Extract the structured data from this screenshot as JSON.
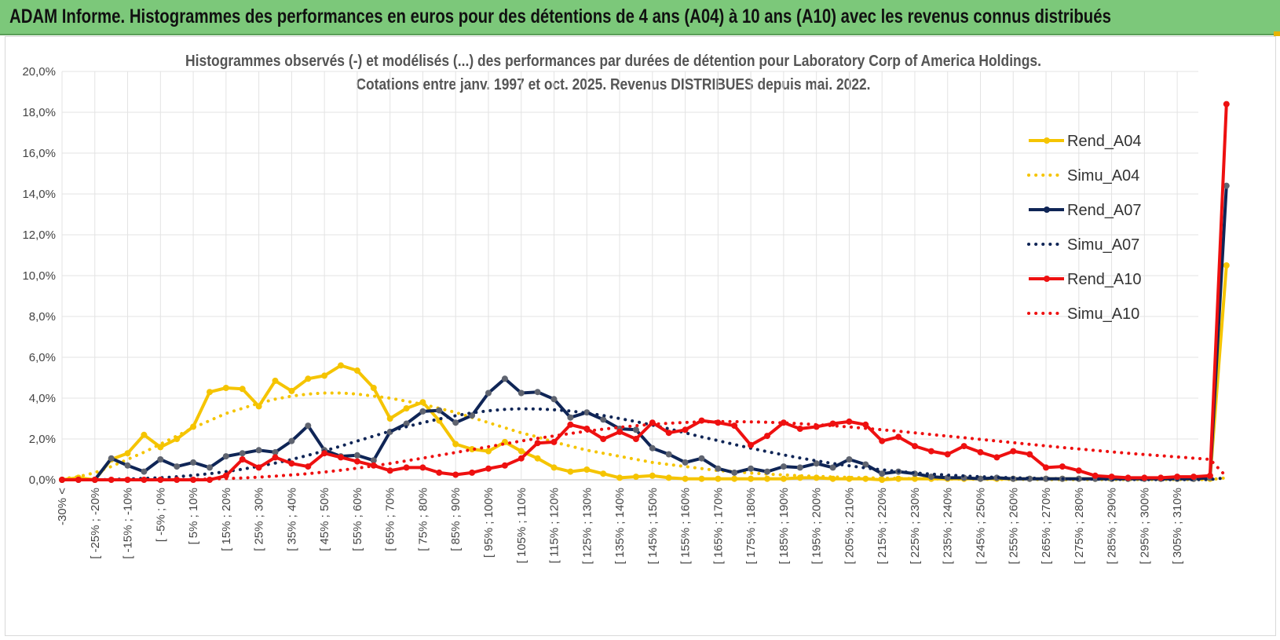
{
  "banner_title": "ADAM Informe. Histogrammes des performances en euros pour des détentions de 4 ans (A04) à 10 ans (A10) avec les revenus connus distribués",
  "chart_data": {
    "type": "line",
    "title": "Histogrammes observés (-) et modélisés (...) des performances par durées de détention pour Laboratory Corp of America  Holdings.",
    "subtitle": "Cotations entre janv. 1997 et oct. 2025.  Revenus DISTRIBUES depuis mai. 2022.",
    "ylim": [
      0,
      20
    ],
    "yticks": [
      "0,0%",
      "2,0%",
      "4,0%",
      "6,0%",
      "8,0%",
      "10,0%",
      "12,0%",
      "14,0%",
      "16,0%",
      "18,0%",
      "20,0%"
    ],
    "grid": "vertical-and-horizontal",
    "legend_position": "right",
    "x_labels": [
      "-30% <",
      "",
      "[ -25% ; -20%",
      "",
      "[ -15% ; -10%",
      "",
      "[ -5% ; 0%",
      "",
      "[ 5% ; 10%",
      "",
      "[ 15% ; 20%",
      "",
      "[ 25% ; 30%",
      "",
      "[ 35% ; 40%",
      "",
      "[ 45% ; 50%",
      "",
      "[ 55% ; 60%",
      "",
      "[ 65% ; 70%",
      "",
      "[ 75% ; 80%",
      "",
      "[ 85% ; 90%",
      "",
      "[ 95% ; 100%",
      "",
      "[ 105% ; 110%",
      "",
      "[ 115% ; 120%",
      "",
      "[ 125% ; 130%",
      "",
      "[ 135% ; 140%",
      "",
      "[ 145% ; 150%",
      "",
      "[ 155% ; 160%",
      "",
      "[ 165% ; 170%",
      "",
      "[ 175% ; 180%",
      "",
      "[ 185% ; 190%",
      "",
      "[ 195% ; 200%",
      "",
      "[ 205% ; 210%",
      "",
      "[ 215% ; 220%",
      "",
      "[ 225% ; 230%",
      "",
      "[ 235% ; 240%",
      "",
      "[ 245% ; 250%",
      "",
      "[ 255% ; 260%",
      "",
      "[ 265% ; 270%",
      "",
      "[ 275% ; 280%",
      "",
      "[ 285% ; 290%",
      "",
      "[ 295% ; 300%",
      "",
      "[ 305% ; 310%",
      ""
    ],
    "series": [
      {
        "name": "Rend_A04",
        "style": "solid",
        "color": "#f5c400",
        "values": [
          0,
          0.1,
          0,
          1,
          1.3,
          2.2,
          1.6,
          2,
          2.6,
          4.3,
          4.5,
          4.45,
          3.6,
          4.85,
          4.35,
          4.95,
          5.1,
          5.6,
          5.35,
          4.5,
          3,
          3.5,
          3.8,
          2.9,
          1.75,
          1.5,
          1.4,
          1.85,
          1.4,
          1.05,
          0.6,
          0.4,
          0.5,
          0.3,
          0.1,
          0.15,
          0.2,
          0.1,
          0.05,
          0.05,
          0.05,
          0.05,
          0.05,
          0.05,
          0.05,
          0.1,
          0.1,
          0.05,
          0.05,
          0.05,
          0,
          0.05,
          0.05,
          0.05,
          0.05,
          0.05,
          0.05,
          0.05,
          0.05,
          0.05,
          0.05,
          0.05,
          0.05,
          0.05,
          0.05,
          0.05,
          0.05,
          0.05,
          0.05,
          0.05,
          0.05,
          10.5
        ]
      },
      {
        "name": "Simu_A04",
        "style": "dotted",
        "color": "#f5c400",
        "values": [
          0.05,
          0.15,
          0.35,
          0.65,
          1,
          1.35,
          1.75,
          2.15,
          2.55,
          2.9,
          3.25,
          3.5,
          3.75,
          3.95,
          4.1,
          4.2,
          4.25,
          4.25,
          4.2,
          4.1,
          4,
          3.85,
          3.7,
          3.5,
          3.3,
          3.05,
          2.8,
          2.55,
          2.3,
          2.1,
          1.85,
          1.65,
          1.45,
          1.3,
          1.15,
          1,
          0.85,
          0.75,
          0.65,
          0.55,
          0.45,
          0.4,
          0.33,
          0.28,
          0.24,
          0.2,
          0.17,
          0.14,
          0.12,
          0.1,
          0.08,
          0.07,
          0.06,
          0.05,
          0.04,
          0.03,
          0.03,
          0.02,
          0.02,
          0.02,
          0.01,
          0.01,
          0.01,
          0.01,
          0.01,
          0.01,
          0.01,
          0.01,
          0.01,
          0.01,
          0.01,
          0.1
        ]
      },
      {
        "name": "Rend_A07",
        "style": "solid",
        "color": "#0f2556",
        "values": [
          0,
          0,
          0,
          1.05,
          0.7,
          0.4,
          1,
          0.65,
          0.85,
          0.6,
          1.15,
          1.3,
          1.45,
          1.35,
          1.9,
          2.65,
          1.45,
          1.15,
          1.2,
          0.95,
          2.35,
          2.75,
          3.35,
          3.4,
          2.8,
          3.15,
          4.25,
          4.95,
          4.25,
          4.3,
          3.95,
          3.05,
          3.3,
          2.95,
          2.5,
          2.45,
          1.55,
          1.25,
          0.85,
          1.05,
          0.55,
          0.35,
          0.55,
          0.4,
          0.65,
          0.6,
          0.8,
          0.6,
          1,
          0.75,
          0.3,
          0.4,
          0.3,
          0.15,
          0.1,
          0.1,
          0.05,
          0.1,
          0.05,
          0.05,
          0.05,
          0.05,
          0.05,
          0.05,
          0.05,
          0.05,
          0.05,
          0.05,
          0.05,
          0.05,
          0.1,
          14.4
        ]
      },
      {
        "name": "Simu_A07",
        "style": "dotted",
        "color": "#0f2556",
        "values": [
          0,
          0,
          0,
          0.02,
          0.04,
          0.07,
          0.1,
          0.15,
          0.22,
          0.3,
          0.4,
          0.52,
          0.66,
          0.82,
          1,
          1.2,
          1.42,
          1.65,
          1.9,
          2.14,
          2.38,
          2.6,
          2.8,
          2.98,
          3.14,
          3.28,
          3.38,
          3.45,
          3.48,
          3.47,
          3.43,
          3.37,
          3.27,
          3.15,
          3,
          2.85,
          2.68,
          2.5,
          2.3,
          2.1,
          1.92,
          1.73,
          1.55,
          1.38,
          1.22,
          1.07,
          0.93,
          0.8,
          0.69,
          0.58,
          0.49,
          0.41,
          0.34,
          0.28,
          0.23,
          0.19,
          0.15,
          0.12,
          0.1,
          0.08,
          0.06,
          0.05,
          0.04,
          0.03,
          0.02,
          0.02,
          0.01,
          0.01,
          0.01,
          0.01,
          0.01,
          0.1
        ]
      },
      {
        "name": "Rend_A10",
        "style": "solid",
        "color": "#ee1010",
        "values": [
          0,
          0,
          0,
          0,
          0,
          0,
          0,
          0,
          0,
          0,
          0.2,
          1,
          0.6,
          1.1,
          0.8,
          0.65,
          1.3,
          1.1,
          0.9,
          0.7,
          0.45,
          0.6,
          0.6,
          0.35,
          0.25,
          0.35,
          0.55,
          0.7,
          1.05,
          1.8,
          1.85,
          2.7,
          2.5,
          2,
          2.35,
          2,
          2.8,
          2.3,
          2.45,
          2.9,
          2.8,
          2.65,
          1.7,
          2.15,
          2.8,
          2.5,
          2.6,
          2.75,
          2.85,
          2.7,
          1.9,
          2.1,
          1.65,
          1.4,
          1.25,
          1.65,
          1.35,
          1.1,
          1.4,
          1.25,
          0.6,
          0.65,
          0.45,
          0.2,
          0.15,
          0.1,
          0.1,
          0.1,
          0.15,
          0.15,
          0.2,
          18.4
        ]
      },
      {
        "name": "Simu_A10",
        "style": "dotted",
        "color": "#ee1010",
        "values": [
          0,
          0,
          0,
          0,
          0,
          0,
          0,
          0.01,
          0.02,
          0.04,
          0.06,
          0.09,
          0.13,
          0.18,
          0.24,
          0.3,
          0.38,
          0.47,
          0.57,
          0.68,
          0.8,
          0.93,
          1.06,
          1.2,
          1.34,
          1.48,
          1.62,
          1.76,
          1.9,
          2.03,
          2.15,
          2.27,
          2.38,
          2.48,
          2.57,
          2.65,
          2.72,
          2.77,
          2.81,
          2.84,
          2.85,
          2.85,
          2.84,
          2.82,
          2.79,
          2.75,
          2.7,
          2.65,
          2.59,
          2.52,
          2.45,
          2.38,
          2.3,
          2.22,
          2.14,
          2.06,
          1.98,
          1.9,
          1.82,
          1.74,
          1.66,
          1.58,
          1.51,
          1.44,
          1.37,
          1.3,
          1.24,
          1.18,
          1.12,
          1.06,
          1,
          0.15
        ]
      }
    ]
  }
}
